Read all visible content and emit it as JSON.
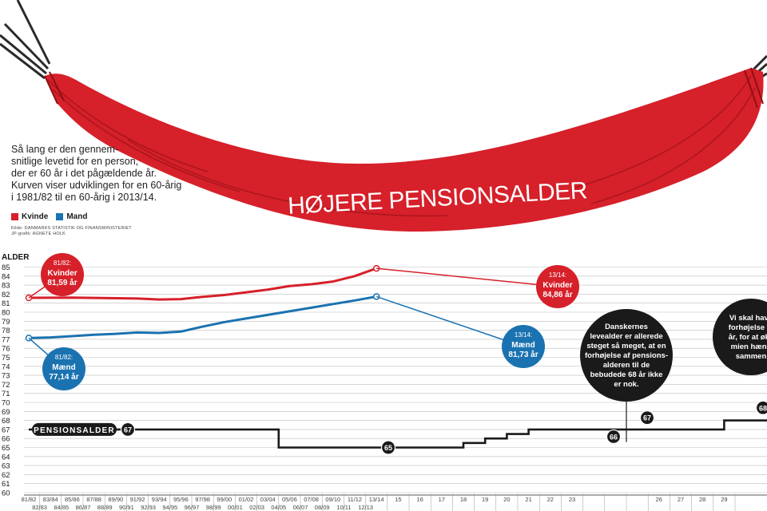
{
  "headline": "HØJERE PENSIONSALDER",
  "intro_text": "Så lang er den gennem-snitlige levetid for en person, der er 60 år i det pågældende år. Kurven viser udviklingen for en 60-årig i 1981/82 til en 60-årig i 2013/14.",
  "intro_lines": [
    "Så lang er den gennem-",
    "snitlige levetid for en person,",
    "der er 60 år i det pågældende år.",
    "Kurven viser udviklingen for en 60-årig",
    "i 1981/82 til en 60-årig i 2013/14."
  ],
  "legend": [
    {
      "label": "Kvinde",
      "color": "#d6202a"
    },
    {
      "label": "Mand",
      "color": "#1a72b0"
    }
  ],
  "source_lines": [
    "Kilde: DANMARKS STATISTIK OG FINANSMINISTERIET",
    "JP-grafik: AGNETE HOLK"
  ],
  "colors": {
    "red": "#d6202a",
    "blue": "#1a72b0",
    "dark": "#1a1a1a",
    "hammock": "#d6202a"
  },
  "chart_data": {
    "type": "line",
    "ylabel": "ALDER",
    "ylim": [
      60,
      85
    ],
    "yticks": [
      60,
      61,
      62,
      63,
      64,
      65,
      66,
      67,
      68,
      69,
      70,
      71,
      72,
      73,
      74,
      75,
      76,
      77,
      78,
      79,
      80,
      81,
      82,
      83,
      84,
      85
    ],
    "x_top": [
      "81/82",
      "83/84",
      "85/86",
      "87/88",
      "89/90",
      "91/92",
      "93/94",
      "95/96",
      "97/98",
      "99/00",
      "01/02",
      "03/04",
      "05/06",
      "07/08",
      "09/10",
      "11/12",
      "13/14",
      "15",
      "16",
      "17",
      "18",
      "19",
      "20",
      "21",
      "22",
      "23",
      "",
      "",
      "",
      "26",
      "27",
      "28",
      "29"
    ],
    "x_bottom": [
      "82/83",
      "84/85",
      "86/87",
      "88/89",
      "90/91",
      "92/93",
      "94/95",
      "96/97",
      "98/99",
      "00/01",
      "02/03",
      "04/05",
      "06/07",
      "08/09",
      "10/11",
      "12/13"
    ],
    "series": [
      {
        "name": "Kvinde",
        "color": "#d6202a",
        "x": [
          "81/82",
          "83/84",
          "85/86",
          "87/88",
          "89/90",
          "91/92",
          "93/94",
          "95/96",
          "97/98",
          "99/00",
          "01/02",
          "03/04",
          "05/06",
          "07/08",
          "09/10",
          "11/12",
          "13/14"
        ],
        "values": [
          81.59,
          81.6,
          81.62,
          81.58,
          81.55,
          81.52,
          81.4,
          81.45,
          81.7,
          81.9,
          82.2,
          82.5,
          82.9,
          83.1,
          83.4,
          84.0,
          84.86
        ]
      },
      {
        "name": "Mand",
        "color": "#1a72b0",
        "x": [
          "81/82",
          "83/84",
          "85/86",
          "87/88",
          "89/90",
          "91/92",
          "93/94",
          "95/96",
          "97/98",
          "99/00",
          "01/02",
          "03/04",
          "05/06",
          "07/08",
          "09/10",
          "11/12",
          "13/14"
        ],
        "values": [
          77.14,
          77.2,
          77.35,
          77.5,
          77.6,
          77.75,
          77.7,
          77.85,
          78.4,
          78.9,
          79.3,
          79.7,
          80.1,
          80.5,
          80.9,
          81.3,
          81.73
        ]
      },
      {
        "name": "PENSIONSALDER",
        "color": "#1a1a1a",
        "x": [
          "81/82",
          "03/04",
          "04/05",
          "17",
          "18",
          "19",
          "20",
          "21",
          "22",
          "23",
          "29"
        ],
        "values": [
          67,
          67,
          65,
          65,
          65.5,
          66,
          66.5,
          67,
          67,
          67,
          68
        ]
      }
    ],
    "annotations": [
      {
        "period": "81/82:",
        "text": "Kvinder",
        "value": "81,59 år",
        "color": "#d6202a"
      },
      {
        "period": "13/14:",
        "text": "Kvinder",
        "value": "84,86 år",
        "color": "#d6202a"
      },
      {
        "period": "81/82:",
        "text": "Mænd",
        "value": "77,14 år",
        "color": "#1a72b0"
      },
      {
        "period": "13/14:",
        "text": "Mænd",
        "value": "81,73 år",
        "color": "#1a72b0"
      }
    ],
    "pension_label": "PENSIONSALDER",
    "pension_badges": [
      "67",
      "65",
      "66",
      "67",
      "68"
    ],
    "notes": [
      {
        "lines": [
          "Danskernes",
          "levealder er allerede",
          "steget så meget, at en",
          "forhøjelse af pensions-",
          "alderen til de",
          "bebudede 68 år ikke",
          "er nok."
        ]
      },
      {
        "lines": [
          "Vi skal have",
          "forhøjelse til",
          "år, for at øke",
          "mien hæng",
          "sammen"
        ]
      }
    ]
  }
}
